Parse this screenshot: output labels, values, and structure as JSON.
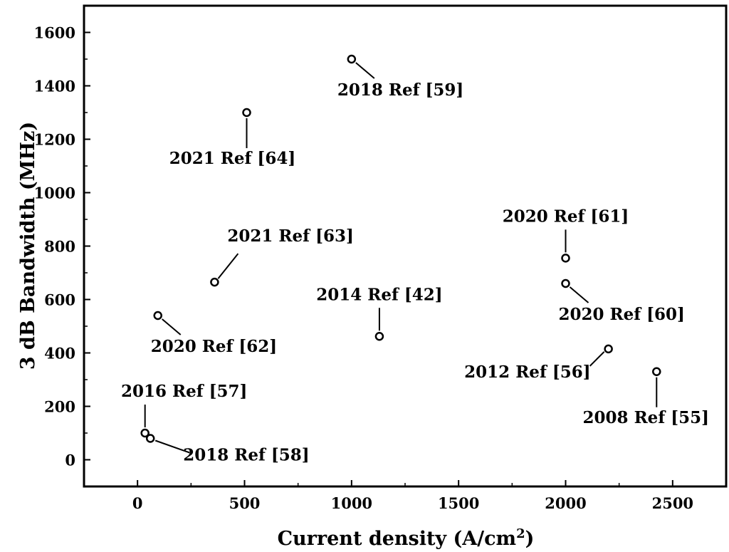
{
  "chart_data": {
    "type": "scatter",
    "xlabel": "Current density (A/cm",
    "xlabel_sup": "2",
    "xlabel_end": ")",
    "ylabel": "3 dB Bandwidth (MHz)",
    "xlim": [
      -250,
      2750
    ],
    "ylim": [
      -100,
      1700
    ],
    "xticks": [
      0,
      500,
      1000,
      1500,
      2000,
      2500
    ],
    "yticks": [
      0,
      200,
      400,
      600,
      800,
      1000,
      1200,
      1400,
      1600
    ],
    "grid": false,
    "legend": "none",
    "marker": "open-circle",
    "points": [
      {
        "x": 1000,
        "y": 1500,
        "label": "2018 Ref [59]",
        "label_pos": "below-right"
      },
      {
        "x": 510,
        "y": 1300,
        "label": "2021 Ref [64]",
        "label_pos": "below"
      },
      {
        "x": 360,
        "y": 665,
        "label": "2021 Ref [63]",
        "label_pos": "above-right"
      },
      {
        "x": 95,
        "y": 540,
        "label": "2020 Ref [62]",
        "label_pos": "below-right"
      },
      {
        "x": 35,
        "y": 100,
        "label": "2016 Ref [57]",
        "label_pos": "above"
      },
      {
        "x": 60,
        "y": 80,
        "label": "2018 Ref [58]",
        "label_pos": "right"
      },
      {
        "x": 1130,
        "y": 462,
        "label": "2014 Ref [42]",
        "label_pos": "above"
      },
      {
        "x": 2000,
        "y": 755,
        "label": "2020 Ref [61]",
        "label_pos": "above"
      },
      {
        "x": 2000,
        "y": 660,
        "label": "2020 Ref [60]",
        "label_pos": "below-right"
      },
      {
        "x": 2200,
        "y": 415,
        "label": "2012 Ref [56]",
        "label_pos": "below-left"
      },
      {
        "x": 2425,
        "y": 330,
        "label": "2008 Ref [55]",
        "label_pos": "below"
      }
    ]
  }
}
